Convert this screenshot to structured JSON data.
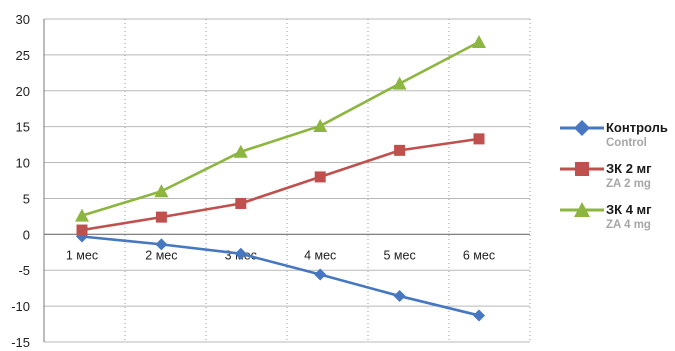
{
  "chart_data": {
    "type": "line",
    "categories": [
      "1 мес",
      "2 мес",
      "3 мес",
      "4 мес",
      "5 мес",
      "6 мес"
    ],
    "y_ticks": [
      "30",
      "25",
      "20",
      "15",
      "10",
      "5",
      "0",
      "-5",
      "-10",
      "-15"
    ],
    "ylim": [
      -15,
      30
    ],
    "ytick_step": 5,
    "grid": true,
    "legend_position": "right",
    "series": [
      {
        "name": "Контроль",
        "name_sub": "Control",
        "color": "#4677c0",
        "marker": "diamond",
        "values": [
          -0.3,
          -1.4,
          -2.7,
          -5.6,
          -8.6,
          -11.3
        ]
      },
      {
        "name": "ЗК 2 мг",
        "name_sub": "ZA 2 mg",
        "color": "#c0504d",
        "marker": "square",
        "values": [
          0.6,
          2.4,
          4.3,
          8.0,
          11.7,
          13.3
        ]
      },
      {
        "name": "ЗК 4 мг",
        "name_sub": "ZA 4 mg",
        "color": "#8db640",
        "marker": "triangle",
        "values": [
          2.6,
          6.0,
          11.5,
          15.1,
          21.0,
          26.8
        ]
      }
    ]
  }
}
